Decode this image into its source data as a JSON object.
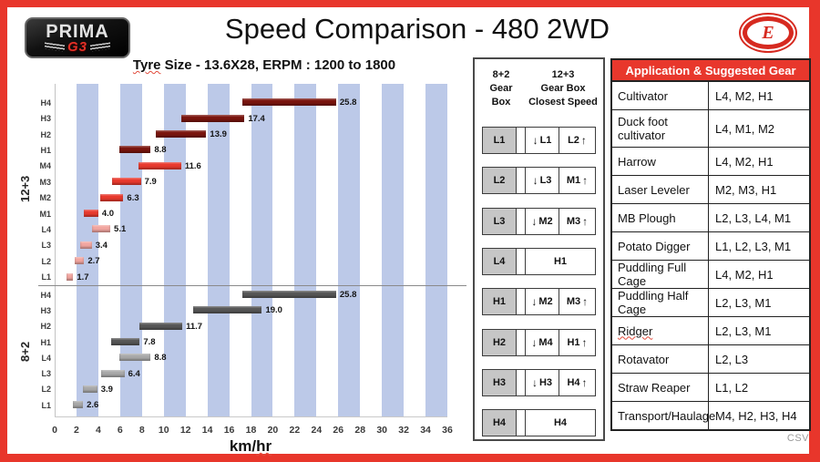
{
  "header": {
    "brand": {
      "line1": "PRIMA",
      "line2": "G3"
    },
    "logo_letter": "E"
  },
  "footer": {
    "watermark": "CSV"
  },
  "icons": {
    "down_arrow": "↓",
    "up_arrow": "↑"
  },
  "chart_data": {
    "type": "bar",
    "orientation": "horizontal-range",
    "title": "Speed Comparison - 480 2WD",
    "subtitle_underlined": "Tyre",
    "subtitle_rest": " Size - 13.6X28, ERPM : 1200 to 1800",
    "erpm_range": [
      1200,
      1800
    ],
    "xlabel_pre": "km/",
    "xlabel_underlined": "hr",
    "xlim": [
      0,
      36
    ],
    "x_ticks": [
      0,
      2,
      4,
      6,
      8,
      10,
      12,
      14,
      16,
      18,
      20,
      22,
      24,
      26,
      28,
      30,
      32,
      34,
      36
    ],
    "grid_band": {
      "start": 2,
      "width": 2,
      "period": 4,
      "color": "#BCC9E8"
    },
    "groups": [
      {
        "label": "12+3",
        "palette": {
          "H": "#7A150E",
          "M": "#E93A2E",
          "L": "#F2A6A0"
        },
        "rows": [
          {
            "gear": "H4",
            "tier": "H",
            "min": 17.2,
            "max": 25.8
          },
          {
            "gear": "H3",
            "tier": "H",
            "min": 11.6,
            "max": 17.4
          },
          {
            "gear": "H2",
            "tier": "H",
            "min": 9.3,
            "max": 13.9
          },
          {
            "gear": "H1",
            "tier": "H",
            "min": 5.9,
            "max": 8.8
          },
          {
            "gear": "M4",
            "tier": "M",
            "min": 7.7,
            "max": 11.6
          },
          {
            "gear": "M3",
            "tier": "M",
            "min": 5.3,
            "max": 7.9
          },
          {
            "gear": "M2",
            "tier": "M",
            "min": 4.2,
            "max": 6.3
          },
          {
            "gear": "M1",
            "tier": "M",
            "min": 2.7,
            "max": 4.0
          },
          {
            "gear": "L4",
            "tier": "L",
            "min": 3.4,
            "max": 5.1
          },
          {
            "gear": "L3",
            "tier": "L",
            "min": 2.3,
            "max": 3.4
          },
          {
            "gear": "L2",
            "tier": "L",
            "min": 1.8,
            "max": 2.7
          },
          {
            "gear": "L1",
            "tier": "L",
            "min": 1.1,
            "max": 1.7
          }
        ]
      },
      {
        "label": "8+2",
        "palette": {
          "H": "#575757",
          "L": "#A9A9A9"
        },
        "rows": [
          {
            "gear": "H4",
            "tier": "H",
            "min": 17.2,
            "max": 25.8
          },
          {
            "gear": "H3",
            "tier": "H",
            "min": 12.7,
            "max": 19.0
          },
          {
            "gear": "H2",
            "tier": "H",
            "min": 7.8,
            "max": 11.7
          },
          {
            "gear": "H1",
            "tier": "H",
            "min": 5.2,
            "max": 7.8
          },
          {
            "gear": "L4",
            "tier": "L",
            "min": 5.9,
            "max": 8.8
          },
          {
            "gear": "L3",
            "tier": "L",
            "min": 4.3,
            "max": 6.4
          },
          {
            "gear": "L2",
            "tier": "L",
            "min": 2.6,
            "max": 3.9
          },
          {
            "gear": "L1",
            "tier": "L",
            "min": 1.7,
            "max": 2.6
          }
        ]
      }
    ]
  },
  "gear_map": {
    "col1_header": [
      "8+2",
      "Gear",
      "Box"
    ],
    "col2_header": [
      "12+3",
      "Gear Box",
      "Closest Speed"
    ],
    "rows": [
      {
        "gear": "L1",
        "down": "L1",
        "up": "L2"
      },
      {
        "gear": "L2",
        "down": "L3",
        "up": "M1"
      },
      {
        "gear": "L3",
        "down": "M2",
        "up": "M3"
      },
      {
        "gear": "L4",
        "merged": "H1"
      },
      {
        "gear": "H1",
        "down": "M2",
        "up": "M3"
      },
      {
        "gear": "H2",
        "down": "M4",
        "up": "H1"
      },
      {
        "gear": "H3",
        "down": "H3",
        "up": "H4"
      },
      {
        "gear": "H4",
        "merged": "H4"
      }
    ]
  },
  "application_table": {
    "header": "Application & Suggested Gear",
    "rows": [
      {
        "application": "Cultivator",
        "gears": "L4, M2, H1"
      },
      {
        "application": "Duck foot cultivator",
        "gears": "L4, M1, M2"
      },
      {
        "application": "Harrow",
        "gears": "L4, M2, H1"
      },
      {
        "application": "Laser Leveler",
        "gears": "M2, M3, H1"
      },
      {
        "application": "MB Plough",
        "gears": "L2, L3, L4, M1"
      },
      {
        "application": "Potato Digger",
        "gears": "L1, L2, L3, M1"
      },
      {
        "application": "Puddling Full Cage",
        "gears": "L4, M2, H1"
      },
      {
        "application": "Puddling Half Cage",
        "gears": "L2, L3, M1"
      },
      {
        "application": "Ridger",
        "gears": "L2, L3, M1"
      },
      {
        "application": "Rotavator",
        "gears": "L2, L3"
      },
      {
        "application": "Straw Reaper",
        "gears": "L1, L2"
      },
      {
        "application": "Transport/Haulage",
        "gears": "M4, H2, H3, H4"
      }
    ]
  }
}
